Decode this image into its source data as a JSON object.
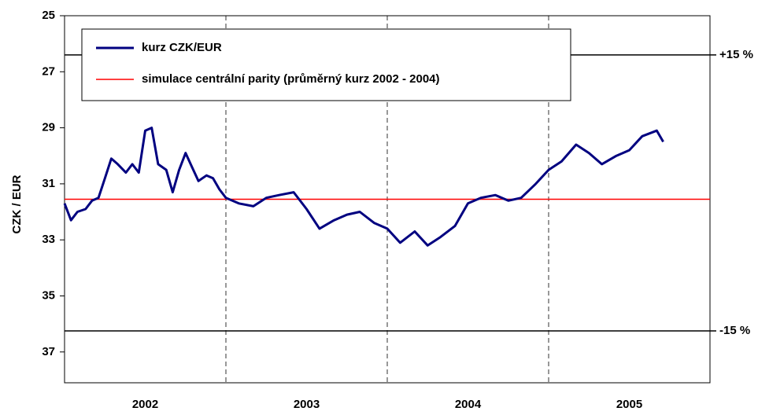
{
  "chart_data": {
    "type": "line",
    "y_label": "CZK / EUR",
    "y_inverted": true,
    "categories": [
      "2002",
      "2003",
      "2004",
      "2005"
    ],
    "xlim": [
      2002,
      2006
    ],
    "ylim": [
      25,
      38.1
    ],
    "yticks": [
      25,
      27,
      29,
      31,
      33,
      35,
      37
    ],
    "x": [
      2002.0,
      2002.04,
      2002.08,
      2002.13,
      2002.17,
      2002.21,
      2002.25,
      2002.29,
      2002.33,
      2002.38,
      2002.42,
      2002.46,
      2002.5,
      2002.54,
      2002.58,
      2002.63,
      2002.67,
      2002.71,
      2002.75,
      2002.79,
      2002.83,
      2002.88,
      2002.92,
      2002.96,
      2003.0,
      2003.08,
      2003.17,
      2003.25,
      2003.33,
      2003.42,
      2003.5,
      2003.58,
      2003.67,
      2003.75,
      2003.83,
      2003.92,
      2004.0,
      2004.08,
      2004.17,
      2004.25,
      2004.33,
      2004.42,
      2004.5,
      2004.58,
      2004.67,
      2004.75,
      2004.83,
      2004.92,
      2005.0,
      2005.08,
      2005.17,
      2005.25,
      2005.33,
      2005.42,
      2005.5,
      2005.58,
      2005.67,
      2005.71
    ],
    "series": [
      {
        "name": "kurz CZK/EUR",
        "color": "#000080",
        "values": [
          31.7,
          32.3,
          32.0,
          31.9,
          31.6,
          31.5,
          30.8,
          30.1,
          30.3,
          30.6,
          30.3,
          30.6,
          29.1,
          29.0,
          30.3,
          30.5,
          31.3,
          30.5,
          29.9,
          30.4,
          30.9,
          30.7,
          30.8,
          31.2,
          31.5,
          31.7,
          31.8,
          31.5,
          31.4,
          31.3,
          31.9,
          32.6,
          32.3,
          32.1,
          32.0,
          32.4,
          32.6,
          33.1,
          32.7,
          33.2,
          32.9,
          32.5,
          31.7,
          31.5,
          31.4,
          31.6,
          31.5,
          31.0,
          30.5,
          30.2,
          29.6,
          29.9,
          30.3,
          30.0,
          29.8,
          29.3,
          29.1,
          29.5
        ]
      }
    ],
    "reference_lines": [
      {
        "name": "simulace centrální parity (průměrný kurz 2002 - 2004)",
        "value": 31.55,
        "color": "#ff0000"
      },
      {
        "label": "+15 %",
        "value": 26.4,
        "color": "#000000"
      },
      {
        "label": "-15 %",
        "value": 36.25,
        "color": "#000000"
      }
    ]
  }
}
